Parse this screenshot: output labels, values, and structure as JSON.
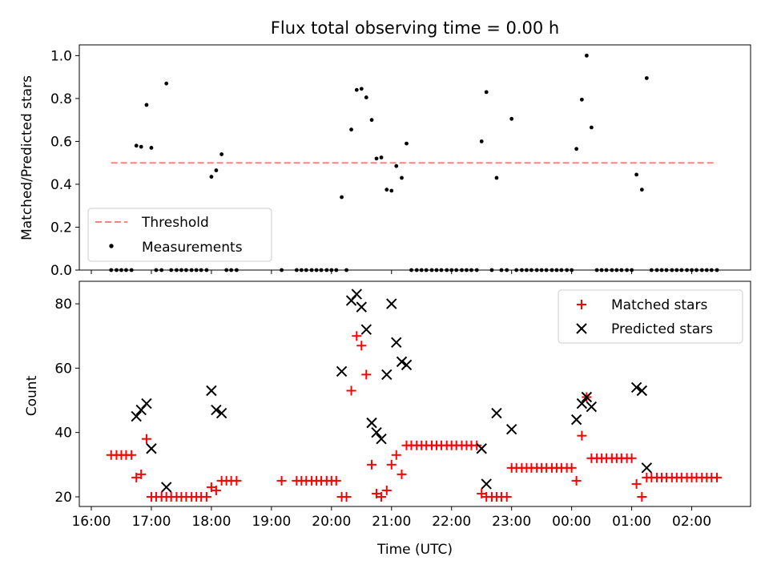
{
  "chart_data": [
    {
      "type": "scatter",
      "title": "Flux total observing time = 0.00 h",
      "ylabel": "Matched/Predicted stars",
      "xlabel": "",
      "ylim": [
        0,
        1.05
      ],
      "yticks": [
        "0.0",
        "0.2",
        "0.4",
        "0.6",
        "0.8",
        "1.0"
      ],
      "xticks": [
        "16:00",
        "17:00",
        "18:00",
        "19:00",
        "20:00",
        "21:00",
        "22:00",
        "23:00",
        "00:00",
        "01:00",
        "02:00"
      ],
      "legend": {
        "position": "lower left",
        "entries": [
          "Threshold",
          "Measurements"
        ]
      },
      "threshold": {
        "name": "Threshold",
        "value": 0.5,
        "x_range": [
          16.33,
          26.42
        ],
        "color": "#ff8080"
      },
      "series": [
        {
          "name": "Measurements",
          "color": "#000000",
          "points": [
            [
              16.33,
              0
            ],
            [
              16.42,
              0
            ],
            [
              16.5,
              0
            ],
            [
              16.58,
              0
            ],
            [
              16.67,
              0
            ],
            [
              16.75,
              0.58
            ],
            [
              16.83,
              0.575
            ],
            [
              16.92,
              0.77
            ],
            [
              17.0,
              0.57
            ],
            [
              17.08,
              0
            ],
            [
              17.17,
              0
            ],
            [
              17.25,
              0.87
            ],
            [
              17.33,
              0
            ],
            [
              17.42,
              0
            ],
            [
              17.5,
              0
            ],
            [
              17.58,
              0
            ],
            [
              17.67,
              0
            ],
            [
              17.75,
              0
            ],
            [
              17.83,
              0
            ],
            [
              17.92,
              0
            ],
            [
              18.0,
              0.435
            ],
            [
              18.08,
              0.465
            ],
            [
              18.17,
              0.54
            ],
            [
              18.25,
              0
            ],
            [
              18.33,
              0
            ],
            [
              18.42,
              0
            ],
            [
              19.17,
              0
            ],
            [
              19.42,
              0
            ],
            [
              19.5,
              0
            ],
            [
              19.58,
              0
            ],
            [
              19.67,
              0
            ],
            [
              19.75,
              0
            ],
            [
              19.83,
              0
            ],
            [
              19.92,
              0
            ],
            [
              20.0,
              0
            ],
            [
              20.08,
              0
            ],
            [
              20.17,
              0.34
            ],
            [
              20.25,
              0
            ],
            [
              20.33,
              0.655
            ],
            [
              20.42,
              0.84
            ],
            [
              20.5,
              0.845
            ],
            [
              20.58,
              0.805
            ],
            [
              20.67,
              0.7
            ],
            [
              20.75,
              0.52
            ],
            [
              20.83,
              0.525
            ],
            [
              20.92,
              0.375
            ],
            [
              21.0,
              0.37
            ],
            [
              21.08,
              0.485
            ],
            [
              21.17,
              0.43
            ],
            [
              21.25,
              0.59
            ],
            [
              21.33,
              0
            ],
            [
              21.42,
              0
            ],
            [
              21.5,
              0
            ],
            [
              21.58,
              0
            ],
            [
              21.67,
              0
            ],
            [
              21.75,
              0
            ],
            [
              21.83,
              0
            ],
            [
              21.92,
              0
            ],
            [
              22.0,
              0
            ],
            [
              22.08,
              0
            ],
            [
              22.17,
              0
            ],
            [
              22.25,
              0
            ],
            [
              22.33,
              0
            ],
            [
              22.42,
              0
            ],
            [
              22.5,
              0.6
            ],
            [
              22.58,
              0.83
            ],
            [
              22.67,
              0
            ],
            [
              22.75,
              0.43
            ],
            [
              22.83,
              0
            ],
            [
              22.92,
              0
            ],
            [
              23.0,
              0.705
            ],
            [
              23.08,
              0
            ],
            [
              23.17,
              0
            ],
            [
              23.25,
              0
            ],
            [
              23.33,
              0
            ],
            [
              23.42,
              0
            ],
            [
              23.5,
              0
            ],
            [
              23.58,
              0
            ],
            [
              23.67,
              0
            ],
            [
              23.75,
              0
            ],
            [
              23.83,
              0
            ],
            [
              23.92,
              0
            ],
            [
              24.0,
              0
            ],
            [
              24.08,
              0.565
            ],
            [
              24.17,
              0.795
            ],
            [
              24.25,
              1.0
            ],
            [
              24.33,
              0.665
            ],
            [
              24.42,
              0
            ],
            [
              24.5,
              0
            ],
            [
              24.58,
              0
            ],
            [
              24.67,
              0
            ],
            [
              24.75,
              0
            ],
            [
              24.83,
              0
            ],
            [
              24.92,
              0
            ],
            [
              25.0,
              0
            ],
            [
              25.08,
              0.445
            ],
            [
              25.17,
              0.375
            ],
            [
              25.25,
              0.895
            ],
            [
              25.33,
              0
            ],
            [
              25.42,
              0
            ],
            [
              25.5,
              0
            ],
            [
              25.58,
              0
            ],
            [
              25.67,
              0
            ],
            [
              25.75,
              0
            ],
            [
              25.83,
              0
            ],
            [
              25.92,
              0
            ],
            [
              26.0,
              0
            ],
            [
              26.08,
              0
            ],
            [
              26.17,
              0
            ],
            [
              26.25,
              0
            ],
            [
              26.33,
              0
            ],
            [
              26.42,
              0
            ]
          ]
        }
      ]
    },
    {
      "type": "scatter",
      "title": "",
      "ylabel": "Count",
      "xlabel": "Time (UTC)",
      "ylim": [
        17,
        87
      ],
      "yticks": [
        "20",
        "40",
        "60",
        "80"
      ],
      "xticks": [
        "16:00",
        "17:00",
        "18:00",
        "19:00",
        "20:00",
        "21:00",
        "22:00",
        "23:00",
        "00:00",
        "01:00",
        "02:00"
      ],
      "legend": {
        "position": "upper right",
        "entries": [
          "Matched stars",
          "Predicted stars"
        ]
      },
      "series": [
        {
          "name": "Matched stars",
          "marker": "+",
          "color": "#ff0000",
          "points": [
            [
              16.33,
              33
            ],
            [
              16.42,
              33
            ],
            [
              16.5,
              33
            ],
            [
              16.58,
              33
            ],
            [
              16.67,
              33
            ],
            [
              16.75,
              26
            ],
            [
              16.83,
              27
            ],
            [
              16.92,
              38
            ],
            [
              17.0,
              20
            ],
            [
              17.08,
              20
            ],
            [
              17.17,
              20
            ],
            [
              17.25,
              20
            ],
            [
              17.33,
              20
            ],
            [
              17.42,
              20
            ],
            [
              17.5,
              20
            ],
            [
              17.58,
              20
            ],
            [
              17.67,
              20
            ],
            [
              17.75,
              20
            ],
            [
              17.83,
              20
            ],
            [
              17.92,
              20
            ],
            [
              18.0,
              23
            ],
            [
              18.08,
              22
            ],
            [
              18.17,
              25
            ],
            [
              18.25,
              25
            ],
            [
              18.33,
              25
            ],
            [
              18.42,
              25
            ],
            [
              19.17,
              25
            ],
            [
              19.42,
              25
            ],
            [
              19.5,
              25
            ],
            [
              19.58,
              25
            ],
            [
              19.67,
              25
            ],
            [
              19.75,
              25
            ],
            [
              19.83,
              25
            ],
            [
              19.92,
              25
            ],
            [
              20.0,
              25
            ],
            [
              20.08,
              25
            ],
            [
              20.17,
              20
            ],
            [
              20.25,
              20
            ],
            [
              20.33,
              53
            ],
            [
              20.42,
              70
            ],
            [
              20.5,
              67
            ],
            [
              20.58,
              58
            ],
            [
              20.67,
              30
            ],
            [
              20.75,
              21
            ],
            [
              20.83,
              20
            ],
            [
              20.92,
              22
            ],
            [
              21.0,
              30
            ],
            [
              21.08,
              33
            ],
            [
              21.17,
              27
            ],
            [
              21.25,
              36
            ],
            [
              21.33,
              36
            ],
            [
              21.42,
              36
            ],
            [
              21.5,
              36
            ],
            [
              21.58,
              36
            ],
            [
              21.67,
              36
            ],
            [
              21.75,
              36
            ],
            [
              21.83,
              36
            ],
            [
              21.92,
              36
            ],
            [
              22.0,
              36
            ],
            [
              22.08,
              36
            ],
            [
              22.17,
              36
            ],
            [
              22.25,
              36
            ],
            [
              22.33,
              36
            ],
            [
              22.42,
              36
            ],
            [
              22.5,
              21
            ],
            [
              22.58,
              20
            ],
            [
              22.67,
              20
            ],
            [
              22.75,
              20
            ],
            [
              22.83,
              20
            ],
            [
              22.92,
              20
            ],
            [
              23.0,
              29
            ],
            [
              23.08,
              29
            ],
            [
              23.17,
              29
            ],
            [
              23.25,
              29
            ],
            [
              23.33,
              29
            ],
            [
              23.42,
              29
            ],
            [
              23.5,
              29
            ],
            [
              23.58,
              29
            ],
            [
              23.67,
              29
            ],
            [
              23.75,
              29
            ],
            [
              23.83,
              29
            ],
            [
              23.92,
              29
            ],
            [
              24.0,
              29
            ],
            [
              24.08,
              25
            ],
            [
              24.17,
              39
            ],
            [
              24.25,
              51
            ],
            [
              24.33,
              32
            ],
            [
              24.42,
              32
            ],
            [
              24.5,
              32
            ],
            [
              24.58,
              32
            ],
            [
              24.67,
              32
            ],
            [
              24.75,
              32
            ],
            [
              24.83,
              32
            ],
            [
              24.92,
              32
            ],
            [
              25.0,
              32
            ],
            [
              25.08,
              24
            ],
            [
              25.17,
              20
            ],
            [
              25.25,
              26
            ],
            [
              25.33,
              26
            ],
            [
              25.42,
              26
            ],
            [
              25.5,
              26
            ],
            [
              25.58,
              26
            ],
            [
              25.67,
              26
            ],
            [
              25.75,
              26
            ],
            [
              25.83,
              26
            ],
            [
              25.92,
              26
            ],
            [
              26.0,
              26
            ],
            [
              26.08,
              26
            ],
            [
              26.17,
              26
            ],
            [
              26.25,
              26
            ],
            [
              26.33,
              26
            ],
            [
              26.42,
              26
            ]
          ]
        },
        {
          "name": "Predicted stars",
          "marker": "x",
          "color": "#000000",
          "points": [
            [
              16.75,
              45
            ],
            [
              16.83,
              47
            ],
            [
              16.92,
              49
            ],
            [
              17.0,
              35
            ],
            [
              17.25,
              23
            ],
            [
              18.0,
              53
            ],
            [
              18.08,
              47
            ],
            [
              18.17,
              46
            ],
            [
              20.17,
              59
            ],
            [
              20.33,
              81
            ],
            [
              20.42,
              83
            ],
            [
              20.5,
              79
            ],
            [
              20.58,
              72
            ],
            [
              20.67,
              43
            ],
            [
              20.75,
              40
            ],
            [
              20.83,
              38
            ],
            [
              20.92,
              58
            ],
            [
              21.0,
              80
            ],
            [
              21.08,
              68
            ],
            [
              21.17,
              62
            ],
            [
              21.25,
              61
            ],
            [
              22.5,
              35
            ],
            [
              22.58,
              24
            ],
            [
              22.75,
              46
            ],
            [
              23.0,
              41
            ],
            [
              24.08,
              44
            ],
            [
              24.17,
              49
            ],
            [
              24.25,
              51
            ],
            [
              24.33,
              48
            ],
            [
              25.08,
              54
            ],
            [
              25.17,
              53
            ],
            [
              25.25,
              29
            ]
          ]
        }
      ]
    }
  ]
}
